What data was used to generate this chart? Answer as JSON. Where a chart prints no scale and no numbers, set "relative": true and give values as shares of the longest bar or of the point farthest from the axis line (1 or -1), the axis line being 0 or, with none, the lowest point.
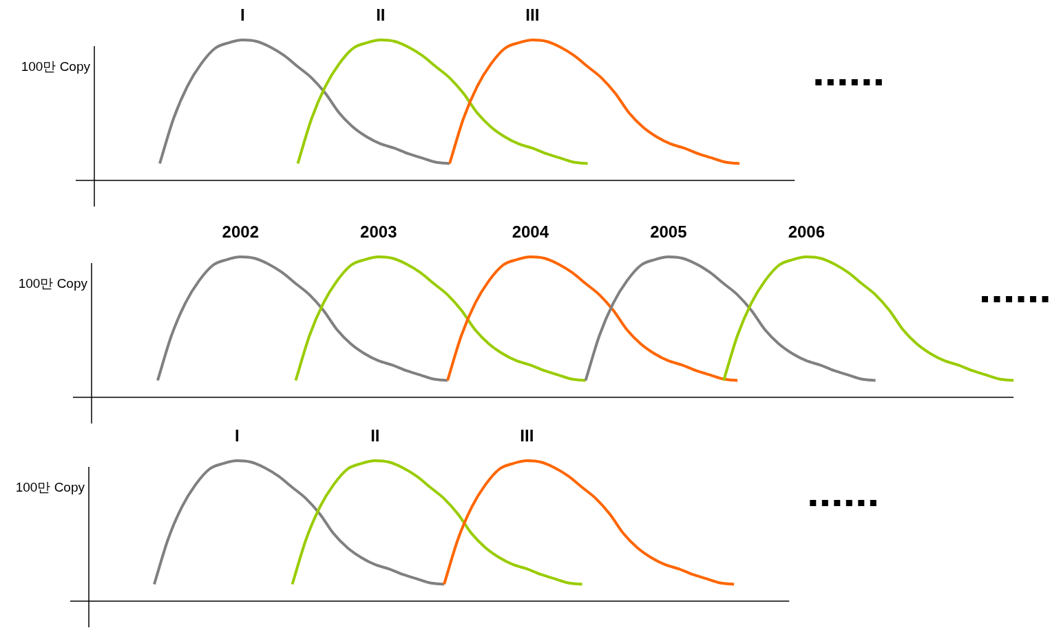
{
  "chart_data": [
    {
      "type": "line",
      "relative": true,
      "ylabel": "100만 Copy",
      "categories": [
        null,
        null,
        null,
        null,
        null,
        null,
        null,
        null,
        null,
        null,
        null,
        null,
        null,
        null,
        null,
        null,
        null,
        null,
        null,
        null,
        null,
        null,
        null,
        null,
        null,
        null,
        null,
        null,
        null,
        null,
        null,
        null,
        null,
        null,
        null,
        null,
        null,
        null,
        null,
        null,
        null,
        null,
        null,
        null,
        null,
        null,
        null
      ],
      "series": [
        {
          "name": "I",
          "color": "#808080",
          "values": [
            0.12,
            0.44,
            0.67,
            0.83,
            0.94,
            0.98,
            1,
            0.99,
            0.95,
            0.89,
            0.81,
            0.73,
            0.62,
            0.48,
            0.38,
            0.31,
            0.26,
            0.23,
            0.19,
            0.16,
            0.13,
            0.12,
            null,
            null,
            null,
            null,
            null,
            null,
            null,
            null,
            null,
            null,
            null,
            null,
            null,
            null,
            null,
            null,
            null,
            null,
            null,
            null,
            null,
            null,
            null,
            null,
            null
          ]
        },
        {
          "name": "II",
          "color": "#99cc00",
          "values": [
            null,
            null,
            null,
            null,
            null,
            null,
            null,
            null,
            null,
            null,
            0.12,
            0.44,
            0.67,
            0.83,
            0.94,
            0.98,
            1,
            0.99,
            0.95,
            0.89,
            0.81,
            0.73,
            0.62,
            0.48,
            0.38,
            0.31,
            0.26,
            0.23,
            0.19,
            0.16,
            0.13,
            0.12,
            null,
            null,
            null,
            null,
            null,
            null,
            null,
            null,
            null,
            null,
            null,
            null,
            null,
            null,
            null
          ]
        },
        {
          "name": "III",
          "color": "#ff6600",
          "values": [
            null,
            null,
            null,
            null,
            null,
            null,
            null,
            null,
            null,
            null,
            null,
            null,
            null,
            null,
            null,
            null,
            null,
            null,
            null,
            null,
            null,
            0.12,
            0.44,
            0.67,
            0.83,
            0.94,
            0.98,
            1,
            0.99,
            0.95,
            0.89,
            0.81,
            0.73,
            0.62,
            0.48,
            0.38,
            0.31,
            0.26,
            0.23,
            0.19,
            0.16,
            0.13,
            0.12,
            null,
            null,
            null,
            null
          ]
        }
      ]
    },
    {
      "type": "line",
      "relative": true,
      "ylabel": "100만 Copy",
      "categories": [
        null,
        null,
        null,
        null,
        null,
        null,
        null,
        null,
        null,
        null,
        null,
        null,
        null,
        null,
        null,
        null,
        null,
        null,
        null,
        null,
        null,
        null,
        null,
        null,
        null,
        null,
        null,
        null,
        null,
        null,
        null,
        null,
        null,
        null,
        null,
        null,
        null,
        null,
        null,
        null,
        null,
        null,
        null,
        null,
        null,
        null,
        null,
        null,
        null,
        null,
        null,
        null,
        null,
        null,
        null,
        null,
        null,
        null,
        null,
        null,
        null,
        null,
        null
      ],
      "series": [
        {
          "name": "2002",
          "color": "#808080",
          "values": [
            0.12,
            0.44,
            0.67,
            0.83,
            0.94,
            0.98,
            1,
            0.99,
            0.95,
            0.89,
            0.81,
            0.73,
            0.62,
            0.48,
            0.38,
            0.31,
            0.26,
            0.23,
            0.19,
            0.16,
            0.13,
            0.12,
            null,
            null,
            null,
            null,
            null,
            null,
            null,
            null,
            null,
            null,
            null,
            null,
            null,
            null,
            null,
            null,
            null,
            null,
            null,
            null,
            null,
            null,
            null,
            null,
            null,
            null,
            null,
            null,
            null,
            null,
            null,
            null,
            null,
            null,
            null,
            null,
            null,
            null,
            null,
            null,
            null
          ]
        },
        {
          "name": "2003",
          "color": "#99cc00",
          "values": [
            null,
            null,
            null,
            null,
            null,
            null,
            null,
            null,
            null,
            null,
            0.12,
            0.44,
            0.67,
            0.83,
            0.94,
            0.98,
            1,
            0.99,
            0.95,
            0.89,
            0.81,
            0.73,
            0.62,
            0.48,
            0.38,
            0.31,
            0.26,
            0.23,
            0.19,
            0.16,
            0.13,
            0.12,
            null,
            null,
            null,
            null,
            null,
            null,
            null,
            null,
            null,
            null,
            null,
            null,
            null,
            null,
            null,
            null,
            null,
            null,
            null,
            null,
            null,
            null,
            null,
            null,
            null,
            null,
            null,
            null,
            null,
            null,
            null
          ]
        },
        {
          "name": "2004",
          "color": "#ff6600",
          "values": [
            null,
            null,
            null,
            null,
            null,
            null,
            null,
            null,
            null,
            null,
            null,
            null,
            null,
            null,
            null,
            null,
            null,
            null,
            null,
            null,
            null,
            0.12,
            0.44,
            0.67,
            0.83,
            0.94,
            0.98,
            1,
            0.99,
            0.95,
            0.89,
            0.81,
            0.73,
            0.62,
            0.48,
            0.38,
            0.31,
            0.26,
            0.23,
            0.19,
            0.16,
            0.13,
            0.12,
            null,
            null,
            null,
            null,
            null,
            null,
            null,
            null,
            null,
            null,
            null,
            null,
            null,
            null,
            null,
            null,
            null,
            null,
            null,
            null
          ]
        },
        {
          "name": "2005",
          "color": "#808080",
          "values": [
            null,
            null,
            null,
            null,
            null,
            null,
            null,
            null,
            null,
            null,
            null,
            null,
            null,
            null,
            null,
            null,
            null,
            null,
            null,
            null,
            null,
            null,
            null,
            null,
            null,
            null,
            null,
            null,
            null,
            null,
            null,
            0.12,
            0.44,
            0.67,
            0.83,
            0.94,
            0.98,
            1,
            0.99,
            0.95,
            0.89,
            0.81,
            0.73,
            0.62,
            0.48,
            0.38,
            0.31,
            0.26,
            0.23,
            0.19,
            0.16,
            0.13,
            0.12,
            null,
            null,
            null,
            null,
            null,
            null,
            null,
            null,
            null,
            null
          ]
        },
        {
          "name": "2006",
          "color": "#99cc00",
          "values": [
            null,
            null,
            null,
            null,
            null,
            null,
            null,
            null,
            null,
            null,
            null,
            null,
            null,
            null,
            null,
            null,
            null,
            null,
            null,
            null,
            null,
            null,
            null,
            null,
            null,
            null,
            null,
            null,
            null,
            null,
            null,
            null,
            null,
            null,
            null,
            null,
            null,
            null,
            null,
            null,
            null,
            0.12,
            0.44,
            0.67,
            0.83,
            0.94,
            0.98,
            1,
            0.99,
            0.95,
            0.89,
            0.81,
            0.73,
            0.62,
            0.48,
            0.38,
            0.31,
            0.26,
            0.23,
            0.19,
            0.16,
            0.13,
            0.12
          ]
        }
      ]
    },
    {
      "type": "line",
      "relative": true,
      "ylabel": "100만 Copy",
      "categories": [
        null,
        null,
        null,
        null,
        null,
        null,
        null,
        null,
        null,
        null,
        null,
        null,
        null,
        null,
        null,
        null,
        null,
        null,
        null,
        null,
        null,
        null,
        null,
        null,
        null,
        null,
        null,
        null,
        null,
        null,
        null,
        null,
        null,
        null,
        null,
        null,
        null,
        null,
        null,
        null,
        null,
        null,
        null,
        null,
        null,
        null,
        null
      ],
      "series": [
        {
          "name": "I",
          "color": "#808080",
          "values": [
            0.12,
            0.44,
            0.67,
            0.83,
            0.94,
            0.98,
            1,
            0.99,
            0.95,
            0.89,
            0.81,
            0.73,
            0.62,
            0.48,
            0.38,
            0.31,
            0.26,
            0.23,
            0.19,
            0.16,
            0.13,
            0.12,
            null,
            null,
            null,
            null,
            null,
            null,
            null,
            null,
            null,
            null,
            null,
            null,
            null,
            null,
            null,
            null,
            null,
            null,
            null,
            null,
            null,
            null,
            null,
            null,
            null
          ]
        },
        {
          "name": "II",
          "color": "#99cc00",
          "values": [
            null,
            null,
            null,
            null,
            null,
            null,
            null,
            null,
            null,
            null,
            0.12,
            0.44,
            0.67,
            0.83,
            0.94,
            0.98,
            1,
            0.99,
            0.95,
            0.89,
            0.81,
            0.73,
            0.62,
            0.48,
            0.38,
            0.31,
            0.26,
            0.23,
            0.19,
            0.16,
            0.13,
            0.12,
            null,
            null,
            null,
            null,
            null,
            null,
            null,
            null,
            null,
            null,
            null,
            null,
            null,
            null,
            null
          ]
        },
        {
          "name": "III",
          "color": "#ff6600",
          "values": [
            null,
            null,
            null,
            null,
            null,
            null,
            null,
            null,
            null,
            null,
            null,
            null,
            null,
            null,
            null,
            null,
            null,
            null,
            null,
            null,
            null,
            0.12,
            0.44,
            0.67,
            0.83,
            0.94,
            0.98,
            1,
            0.99,
            0.95,
            0.89,
            0.81,
            0.73,
            0.62,
            0.48,
            0.38,
            0.31,
            0.26,
            0.23,
            0.19,
            0.16,
            0.13,
            0.12,
            null,
            null,
            null,
            null
          ]
        }
      ]
    }
  ]
}
